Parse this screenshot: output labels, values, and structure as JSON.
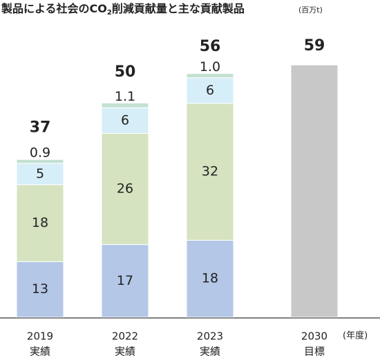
{
  "chart_data": {
    "type": "bar",
    "stacked": true,
    "title": [
      "製品による社会のCO",
      "2",
      "削減貢献量と主な貢献製品"
    ],
    "unit": "(百万t)",
    "x_unit": "(年度)",
    "categories": [
      "2019",
      "2022",
      "2023",
      "2030"
    ],
    "category_sublabels": [
      "実績",
      "実績",
      "実績",
      "目標"
    ],
    "series": [
      {
        "color": "#b4c7e7",
        "values": [
          13,
          17,
          18,
          null
        ]
      },
      {
        "color": "#d5e3c0",
        "values": [
          18,
          26,
          32,
          null
        ]
      },
      {
        "color": "#d6eef8",
        "values": [
          5,
          6,
          6,
          null
        ]
      },
      {
        "color": "#c4e0d3",
        "values": [
          0.9,
          1.1,
          1.0,
          null
        ],
        "value_labels": [
          "0.9",
          "1.1",
          "1.0",
          null
        ]
      },
      {
        "color": "#c8c8c8",
        "values": [
          null,
          null,
          null,
          59
        ]
      }
    ],
    "totals": [
      37,
      50,
      56,
      59
    ],
    "ylim": [
      0,
      60
    ]
  }
}
